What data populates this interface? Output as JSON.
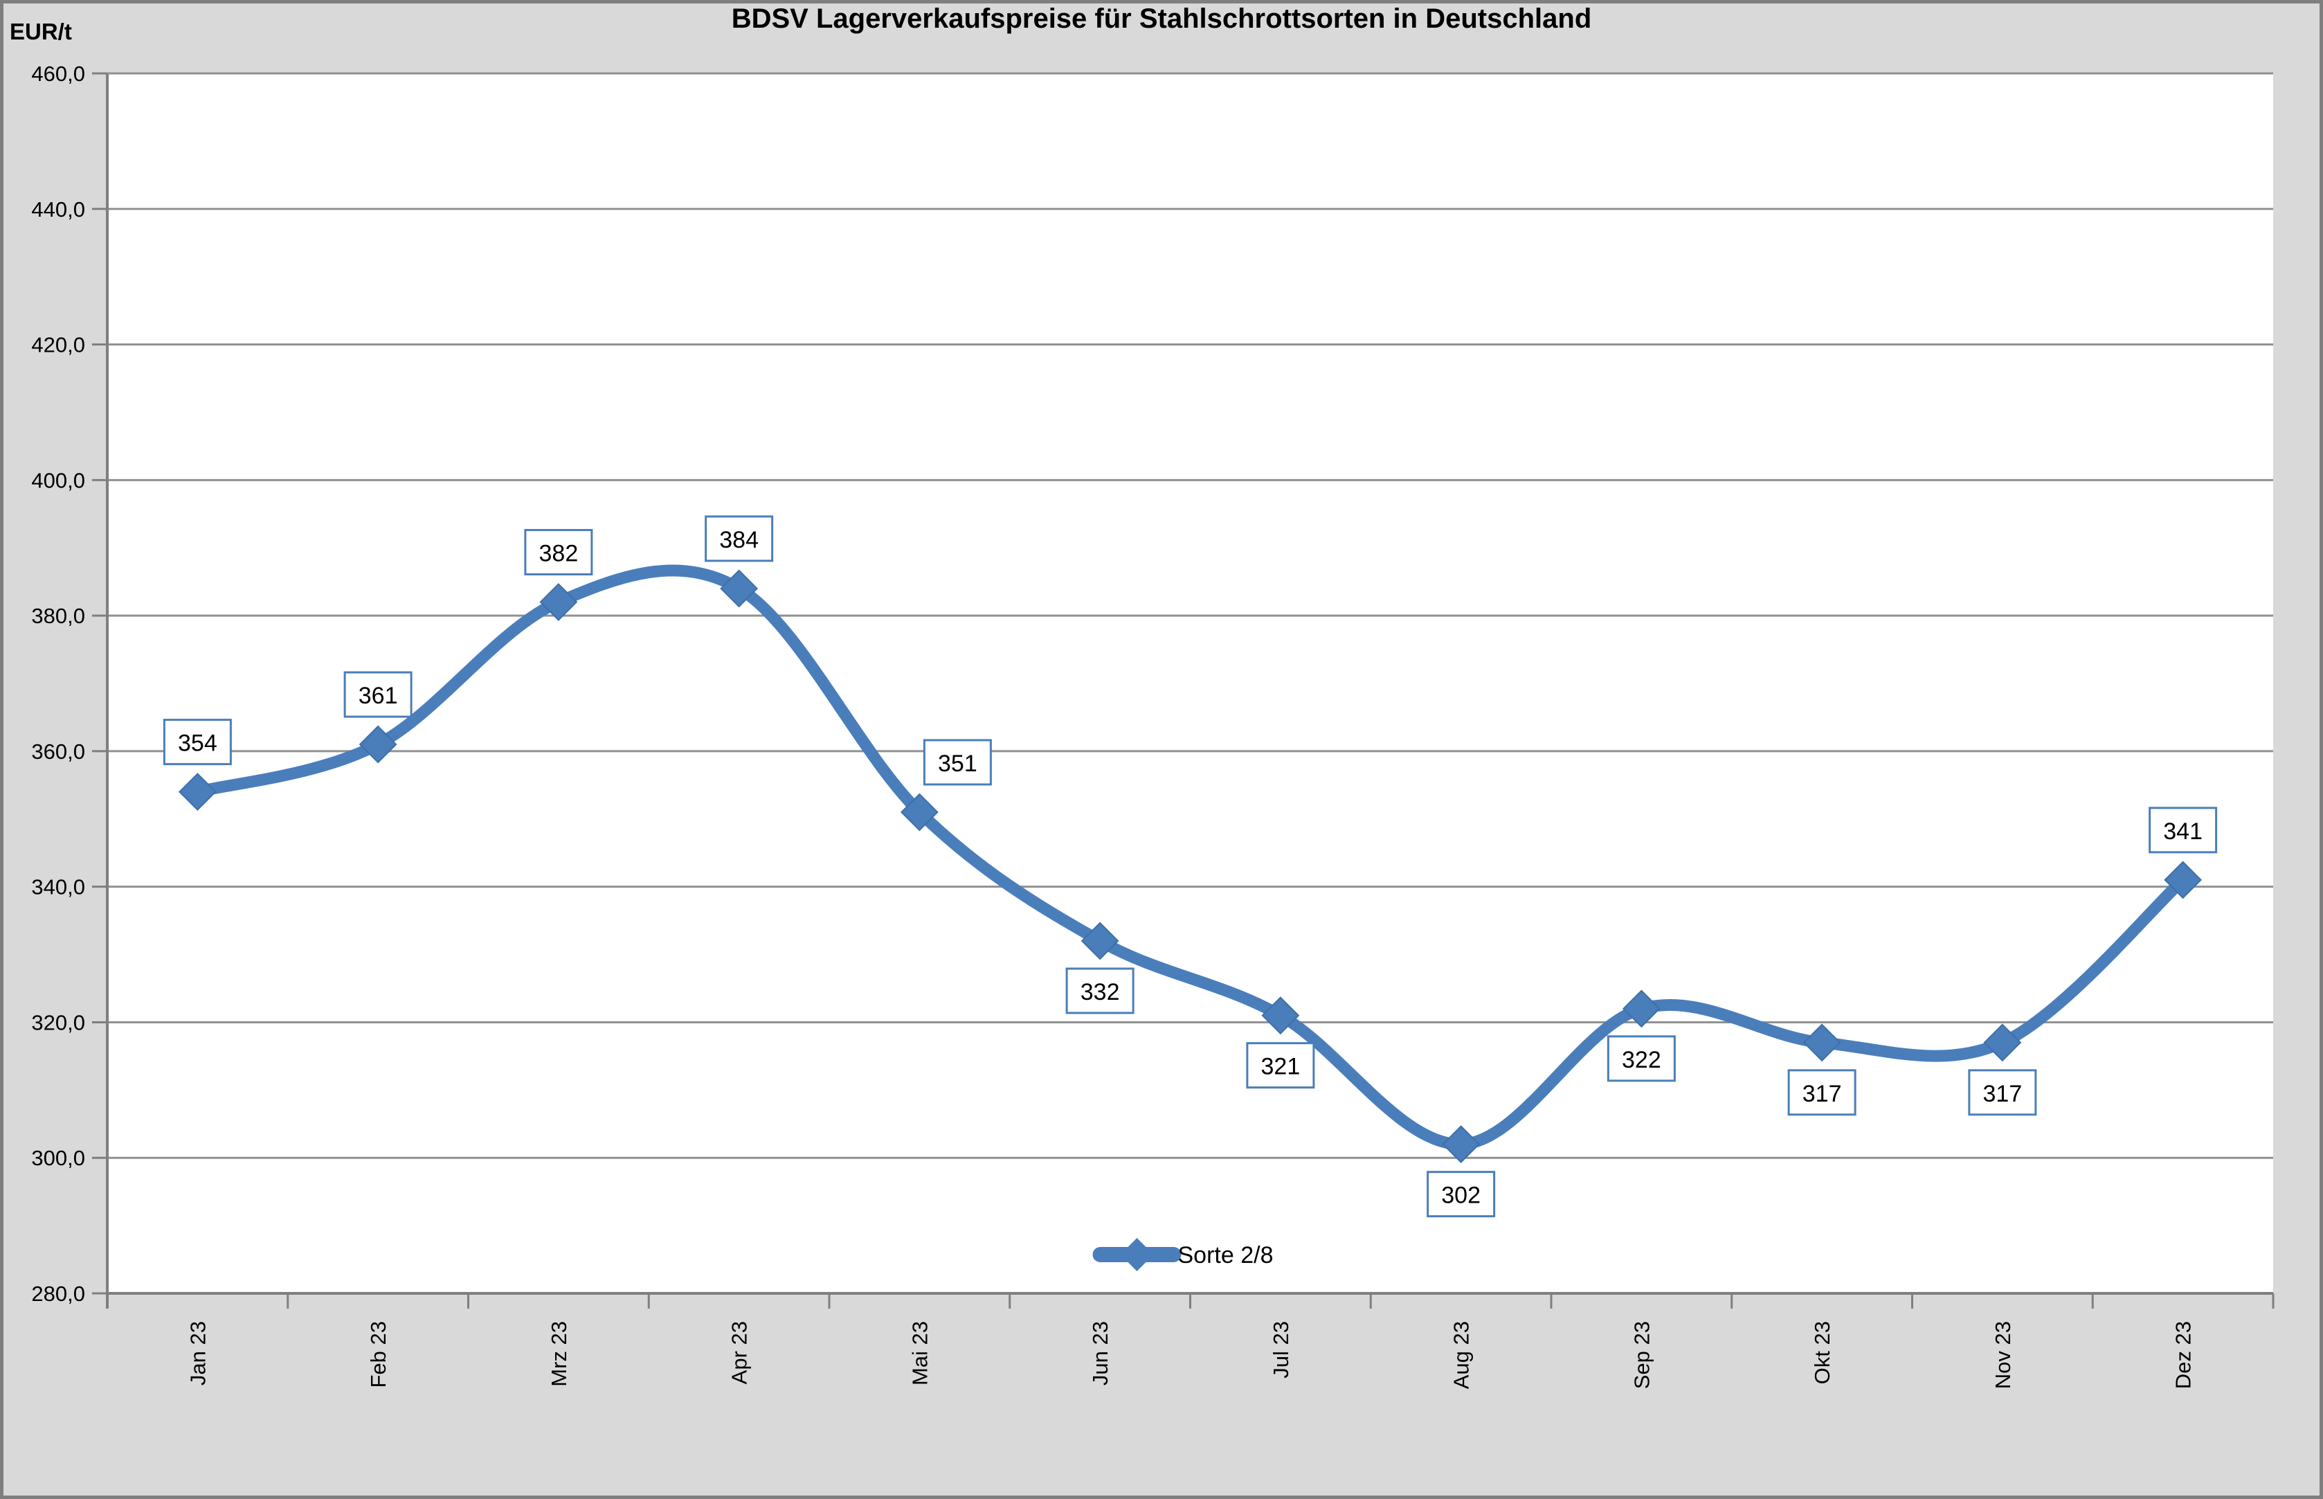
{
  "chart_data": {
    "type": "line",
    "title": "BDSV Lagerverkaufspreise für Stahlschrottsorten in Deutschland",
    "ylabel": "EUR/t",
    "xlabel": "",
    "categories": [
      "Jan 23",
      "Feb 23",
      "Mrz 23",
      "Apr 23",
      "Mai 23",
      "Jun 23",
      "Jul 23",
      "Aug 23",
      "Sep 23",
      "Okt 23",
      "Nov 23",
      "Dez 23"
    ],
    "series": [
      {
        "name": "Sorte 2/8",
        "values": [
          354,
          361,
          382,
          384,
          351,
          332,
          321,
          302,
          322,
          317,
          317,
          341
        ]
      }
    ],
    "data_labels": [
      "354",
      "361",
      "382",
      "384",
      "351",
      "332",
      "321",
      "302",
      "322",
      "317",
      "317",
      "341"
    ],
    "label_positions": [
      "above",
      "above",
      "above",
      "above",
      "above-right",
      "below",
      "below",
      "below",
      "below",
      "below",
      "below",
      "above"
    ],
    "ylim": [
      280,
      460
    ],
    "ytick_interval": 20,
    "ytick_labels": [
      "280,0",
      "300,0",
      "320,0",
      "340,0",
      "360,0",
      "380,0",
      "400,0",
      "420,0",
      "440,0",
      "460,0"
    ],
    "grid": "horizontal",
    "line_smoothing": true,
    "marker": "diamond",
    "legend": {
      "label": "Sorte 2/8",
      "position": "bottom-center-inside"
    }
  },
  "colors": {
    "line": "#4A7EBB",
    "marker_edge": "#3D6FA8",
    "label_border": "#4A7EBB",
    "grid": "#919191",
    "axis": "#7F7F7F",
    "text": "#000000",
    "background": "#D9D9D9",
    "plot_background": "#FFFFFF",
    "frame_border": "#7F7F7F"
  }
}
